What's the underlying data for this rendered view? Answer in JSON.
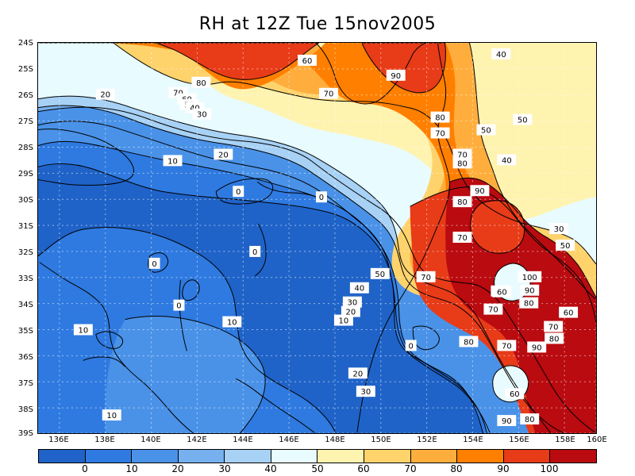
{
  "title": "RH at 12Z Tue 15nov2005",
  "latitude_labels": [
    "24S",
    "25S",
    "26S",
    "27S",
    "28S",
    "29S",
    "30S",
    "31S",
    "32S",
    "33S",
    "34S",
    "35S",
    "36S",
    "37S",
    "38S",
    "39S"
  ],
  "longitude_labels": [
    "136E",
    "138E",
    "140E",
    "142E",
    "144E",
    "146E",
    "148E",
    "150E",
    "152E",
    "154E",
    "156E",
    "158E",
    "160E"
  ],
  "colorbar": {
    "colors": [
      "#1f63c8",
      "#2f7ae0",
      "#4a92e8",
      "#77b0ee",
      "#a7d1f5",
      "#e8fbff",
      "#fff3b0",
      "#ffd36c",
      "#ffae3d",
      "#ff7f00",
      "#e83b18",
      "#b90b10"
    ],
    "labels": [
      "0",
      "10",
      "20",
      "30",
      "40",
      "50",
      "60",
      "70",
      "80",
      "90",
      "100"
    ]
  },
  "contour_labels": [
    {
      "text": "60"
    },
    {
      "text": "90"
    },
    {
      "text": "40"
    },
    {
      "text": "80"
    },
    {
      "text": "70"
    },
    {
      "text": "70"
    },
    {
      "text": "60"
    },
    {
      "text": "50"
    },
    {
      "text": "20"
    },
    {
      "text": "40"
    },
    {
      "text": "30"
    },
    {
      "text": "80"
    },
    {
      "text": "70"
    },
    {
      "text": "50"
    },
    {
      "text": "50"
    },
    {
      "text": "20"
    },
    {
      "text": "10"
    },
    {
      "text": "70"
    },
    {
      "text": "80"
    },
    {
      "text": "40"
    },
    {
      "text": "0"
    },
    {
      "text": "0"
    },
    {
      "text": "90"
    },
    {
      "text": "80"
    },
    {
      "text": "70"
    },
    {
      "text": "30"
    },
    {
      "text": "0"
    },
    {
      "text": "0"
    },
    {
      "text": "50"
    },
    {
      "text": "60"
    },
    {
      "text": "50"
    },
    {
      "text": "70"
    },
    {
      "text": "100"
    },
    {
      "text": "90"
    },
    {
      "text": "40"
    },
    {
      "text": "60"
    },
    {
      "text": "80"
    },
    {
      "text": "30"
    },
    {
      "text": "20"
    },
    {
      "text": "70"
    },
    {
      "text": "60"
    },
    {
      "text": "10"
    },
    {
      "text": "0"
    },
    {
      "text": "10"
    },
    {
      "text": "10"
    },
    {
      "text": "70"
    },
    {
      "text": "80"
    },
    {
      "text": "0"
    },
    {
      "text": "80"
    },
    {
      "text": "70"
    },
    {
      "text": "90"
    },
    {
      "text": "20"
    },
    {
      "text": "60"
    },
    {
      "text": "30"
    },
    {
      "text": "10"
    },
    {
      "text": "90"
    },
    {
      "text": "80"
    },
    {
      "text": "10"
    },
    {
      "text": "20"
    }
  ]
}
